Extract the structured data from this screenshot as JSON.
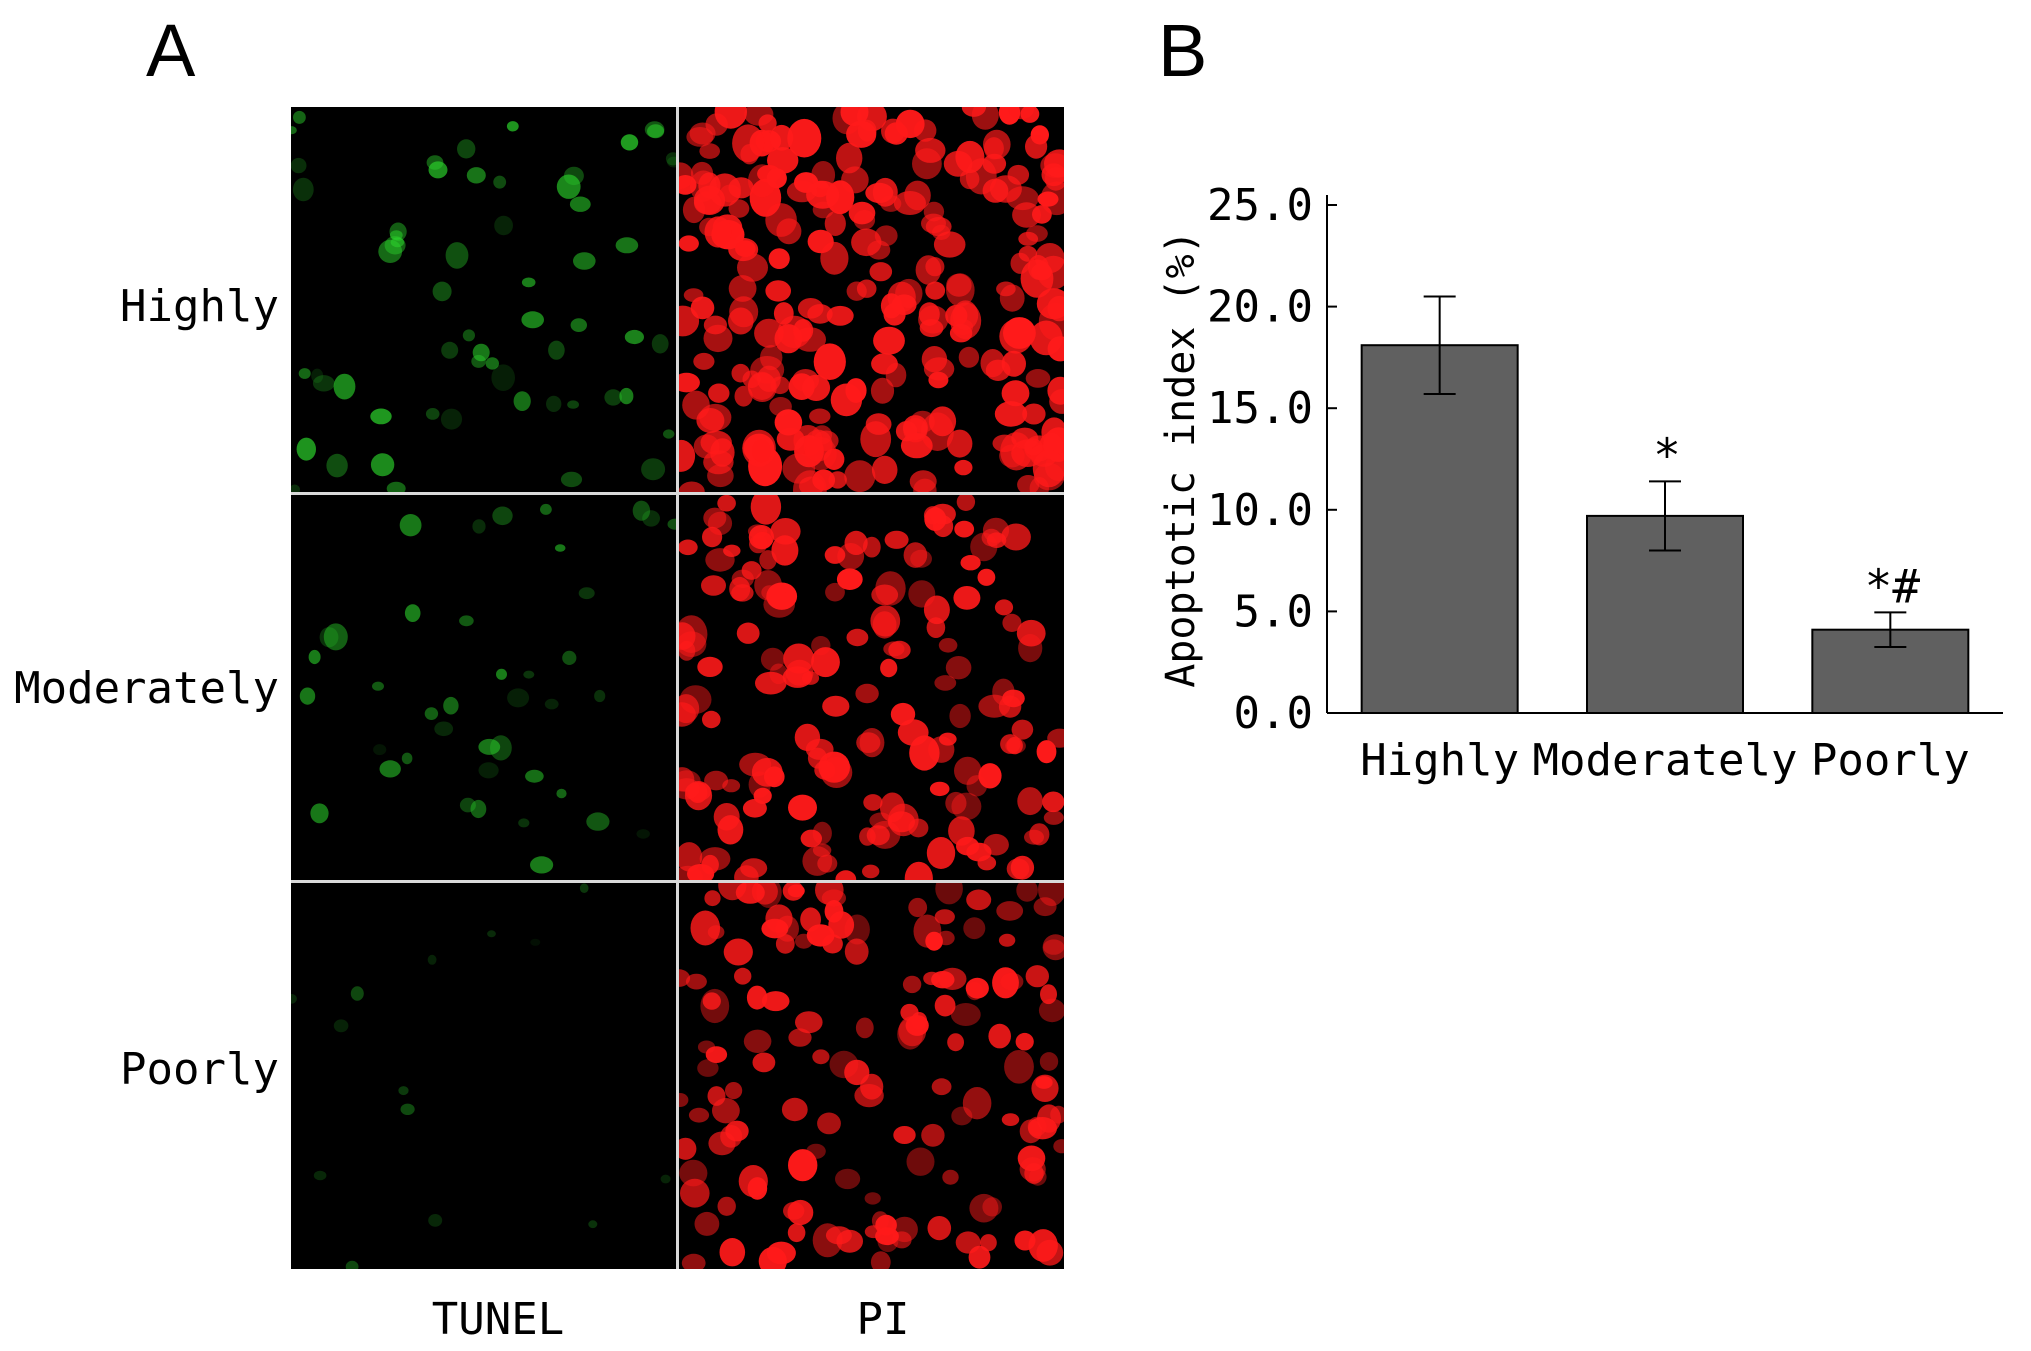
{
  "panels": {
    "a_label": "A",
    "b_label": "B"
  },
  "micrographs": {
    "rows": [
      "Highly",
      "Moderately",
      "Poorly"
    ],
    "columns": [
      "TUNEL",
      "PI"
    ],
    "colors": {
      "tunel": "#2bd12b",
      "pi": "#ff1a1a",
      "background": "#000000",
      "separator": "#d9d9d9"
    }
  },
  "chart_data": {
    "type": "bar",
    "categories": [
      "Highly",
      "Moderately",
      "Poorly"
    ],
    "values": [
      18.1,
      9.7,
      4.1
    ],
    "errors": [
      2.4,
      1.7,
      0.85
    ],
    "annotations": [
      "",
      "*",
      "*#"
    ],
    "ylabel": "Apoptotic index (%)",
    "xlabel": "",
    "ylim": [
      0,
      25
    ],
    "yticks": [
      "0.0",
      "5.0",
      "10.0",
      "15.0",
      "20.0",
      "25.0"
    ],
    "bar_color": "#606060",
    "grid": false,
    "legend": "none"
  }
}
